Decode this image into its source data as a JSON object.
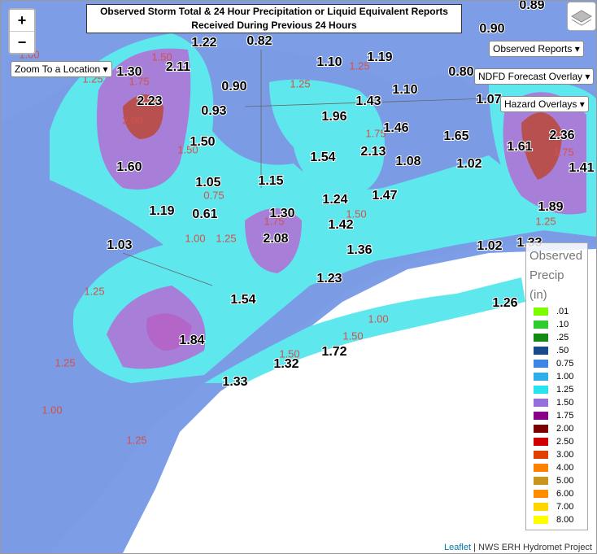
{
  "header": {
    "title_lines": [
      "Observed Storm Total & 24 Hour Precipitation or Liquid Equivalent Reports",
      "Received During Previous 24 Hours"
    ]
  },
  "controls": {
    "zoom_in": "+",
    "zoom_out": "−",
    "zoom_to": "Zoom To a Location",
    "observed_reports": "Observed Reports",
    "ndfd_overlay": "NDFD Forecast Overlay",
    "hazard_overlays": "Hazard Overlays"
  },
  "reports": [
    "0.89",
    "1.22",
    "0.82",
    "1.30",
    "2.11",
    "1.10",
    "1.19",
    "0.90",
    "0.80",
    "0.90",
    "1.10",
    "2.23",
    "1.43",
    "1.07",
    "0.93",
    "1.96",
    "1.46",
    "1.50",
    "1.65",
    "2.36",
    "2.13",
    "1.61",
    "1.54",
    "1.08",
    "1.02",
    "1.41",
    "1.60",
    "1.05",
    "1.15",
    "1.47",
    "1.24",
    "1.19",
    "0.61",
    "1.30",
    "1.89",
    "1.42",
    "2.08",
    "1.03",
    "1.02",
    "1.33",
    "1.36",
    "1.23",
    "1.54",
    "1.26",
    "1.84",
    "1.72",
    "1.32",
    "1.33"
  ],
  "contour_labels": [
    "1.00",
    "1.25",
    "1.50",
    "1.75",
    "2.00",
    "1.50",
    "1.25",
    "1.25",
    "1.75",
    "1.75",
    "0.75",
    "1.00",
    "1.25",
    "1.75",
    "1.50",
    "1.25",
    "1.25",
    "1.00",
    "1.50",
    "1.50",
    "1.25",
    "1.00",
    "1.25"
  ],
  "legend": {
    "title_lines": [
      "Observed",
      "Precip",
      "(in)"
    ],
    "items": [
      {
        "label": ".01",
        "color": "#7cfc00"
      },
      {
        "label": ".10",
        "color": "#2ecc2e"
      },
      {
        "label": ".25",
        "color": "#138a13"
      },
      {
        "label": ".50",
        "color": "#1a4a8a"
      },
      {
        "label": "0.75",
        "color": "#3d86e6"
      },
      {
        "label": "1.00",
        "color": "#2eaee8"
      },
      {
        "label": "1.25",
        "color": "#26e4ee"
      },
      {
        "label": "1.50",
        "color": "#9370db"
      },
      {
        "label": "1.75",
        "color": "#8b008b"
      },
      {
        "label": "2.00",
        "color": "#7b0000"
      },
      {
        "label": "2.50",
        "color": "#d00000"
      },
      {
        "label": "3.00",
        "color": "#e04000"
      },
      {
        "label": "4.00",
        "color": "#ff7f00"
      },
      {
        "label": "5.00",
        "color": "#c8961e"
      },
      {
        "label": "6.00",
        "color": "#ff8c00"
      },
      {
        "label": "7.00",
        "color": "#ffd700"
      },
      {
        "label": "8.00",
        "color": "#ffff00"
      }
    ]
  },
  "attribution": {
    "leaflet": "Leaflet",
    "rest": " | NWS ERH Hydromet Project"
  }
}
